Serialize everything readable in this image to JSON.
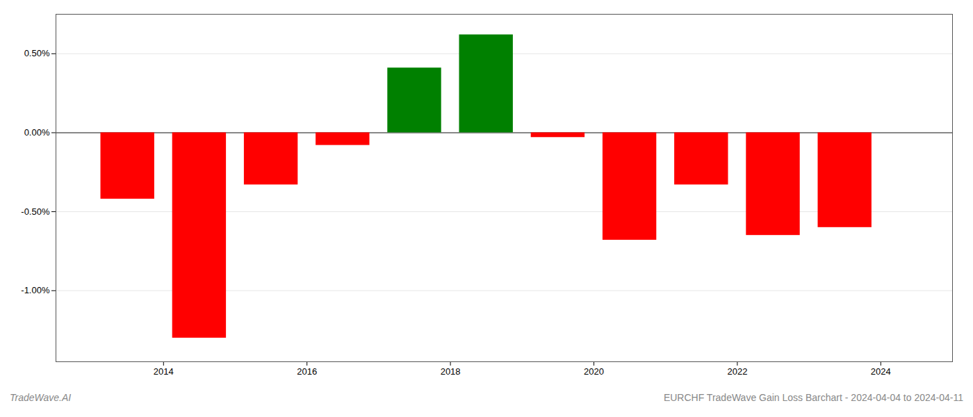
{
  "chart_data": {
    "type": "bar",
    "title": "EURCHF TradeWave Gain Loss Barchart - 2024-04-04 to 2024-04-11",
    "annotations": [
      "TradeWave.AI"
    ],
    "x": [
      2013.5,
      2014.5,
      2015.5,
      2016.5,
      2017.5,
      2018.5,
      2019.5,
      2020.5,
      2021.5,
      2022.5,
      2023.5
    ],
    "values": [
      -0.0042,
      -0.013,
      -0.0033,
      -0.0008,
      0.0041,
      0.0062,
      -0.0003,
      -0.0068,
      -0.0033,
      -0.0065,
      -0.006
    ],
    "colors": [
      "#ff0000",
      "#ff0000",
      "#ff0000",
      "#ff0000",
      "#008000",
      "#008000",
      "#ff0000",
      "#ff0000",
      "#ff0000",
      "#ff0000",
      "#ff0000"
    ],
    "xlim": [
      2012.5,
      2025.0
    ],
    "ylim": [
      -0.0145,
      0.0075
    ],
    "xticks": [
      2014,
      2016,
      2018,
      2020,
      2022,
      2024
    ],
    "yticks": [
      {
        "value": -0.01,
        "label": "-1.00%"
      },
      {
        "value": -0.005,
        "label": "-0.50%"
      },
      {
        "value": 0.0,
        "label": "0.00%"
      },
      {
        "value": 0.005,
        "label": "0.50%"
      }
    ],
    "grid": true
  }
}
